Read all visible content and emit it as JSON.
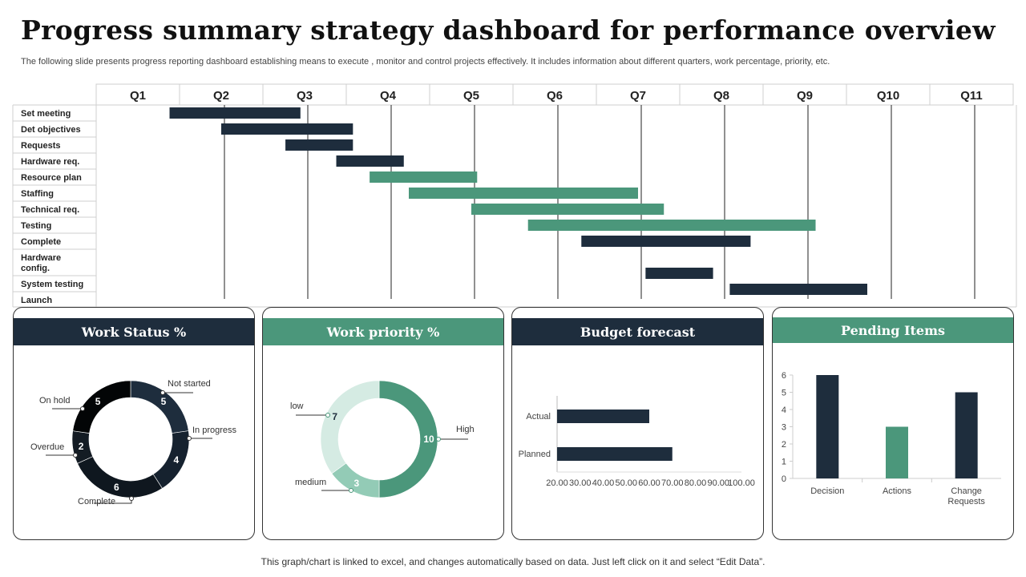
{
  "header": {
    "title": "Progress summary strategy dashboard for performance overview",
    "subtitle": "The following slide presents progress reporting dashboard establishing means to execute , monitor and control projects effectively.  It includes information about different quarters, work percentage, priority, etc."
  },
  "footer": {
    "note": "This graph/chart is linked to excel,  and changes automatically based on data. Just left click on it and select “Edit Data”."
  },
  "colors": {
    "navy": "#1e2d3d",
    "green": "#4b977b",
    "light_green": "#d5ebe3",
    "mid_green": "#93cbb6",
    "black": "#0b0f13"
  },
  "chart_data": [
    {
      "id": "gantt",
      "type": "gantt",
      "columns": [
        "Q1",
        "Q2",
        "Q3",
        "Q4",
        "Q5",
        "Q6",
        "Q7",
        "Q8",
        "Q9",
        "Q10",
        "Q11"
      ],
      "tasks": [
        {
          "label": "Set meeting",
          "start": 0.88,
          "end": 2.45,
          "color": "navy"
        },
        {
          "label": "Det objectives",
          "start": 1.5,
          "end": 3.08,
          "color": "navy"
        },
        {
          "label": "Requests",
          "start": 2.27,
          "end": 3.08,
          "color": "navy"
        },
        {
          "label": "Hardware req.",
          "start": 2.88,
          "end": 3.69,
          "color": "navy"
        },
        {
          "label": "Resource plan",
          "start": 3.28,
          "end": 4.57,
          "color": "green"
        },
        {
          "label": "Staffing",
          "start": 3.75,
          "end": 6.5,
          "color": "green"
        },
        {
          "label": "Technical req.",
          "start": 4.5,
          "end": 6.81,
          "color": "green"
        },
        {
          "label": "Testing",
          "start": 5.18,
          "end": 8.63,
          "color": "green"
        },
        {
          "label": "Complete",
          "start": 5.82,
          "end": 7.85,
          "color": "navy"
        },
        {
          "label": "Hardware config.",
          "start": 6.59,
          "end": 7.4,
          "color": "navy"
        },
        {
          "label": "System testing",
          "start": 7.6,
          "end": 9.25,
          "color": "navy"
        },
        {
          "label": "Launch",
          "start": null,
          "end": null,
          "color": "navy"
        }
      ]
    },
    {
      "id": "work_status",
      "type": "pie",
      "title": "Work Status %",
      "slices": [
        {
          "label": "Not started",
          "value": 5,
          "color": "#1e2d3d"
        },
        {
          "label": "In progress",
          "value": 4,
          "color": "#16222f"
        },
        {
          "label": "Complete",
          "value": 6,
          "color": "#0f171f"
        },
        {
          "label": "Overdue",
          "value": 2,
          "color": "#141c24"
        },
        {
          "label": "On hold",
          "value": 5,
          "color": "#030506"
        }
      ]
    },
    {
      "id": "work_priority",
      "type": "pie",
      "title": "Work priority %",
      "slices": [
        {
          "label": "High",
          "value": 10,
          "color": "#4b977b"
        },
        {
          "label": "medium",
          "value": 3,
          "color": "#93cbb6"
        },
        {
          "label": "low",
          "value": 7,
          "color": "#d5ebe3"
        }
      ]
    },
    {
      "id": "budget",
      "type": "bar",
      "orientation": "horizontal",
      "title": "Budget forecast",
      "categories": [
        "Actual",
        "Planned"
      ],
      "values": [
        60,
        70
      ],
      "xlim": [
        20,
        100
      ],
      "ticks": [
        "20.00",
        "30.00",
        "40.00",
        "50.00",
        "60.00",
        "70.00",
        "80.00",
        "90.00",
        "100.00"
      ]
    },
    {
      "id": "pending",
      "type": "bar",
      "title": "Pending Items",
      "categories": [
        "Decision",
        "Actions",
        "Change Requests"
      ],
      "values": [
        6,
        3,
        5
      ],
      "colors": [
        "#1e2d3d",
        "#4b977b",
        "#1e2d3d"
      ],
      "ylim": [
        0,
        6
      ],
      "yticks": [
        "0",
        "1",
        "2",
        "3",
        "4",
        "5",
        "6"
      ]
    }
  ]
}
